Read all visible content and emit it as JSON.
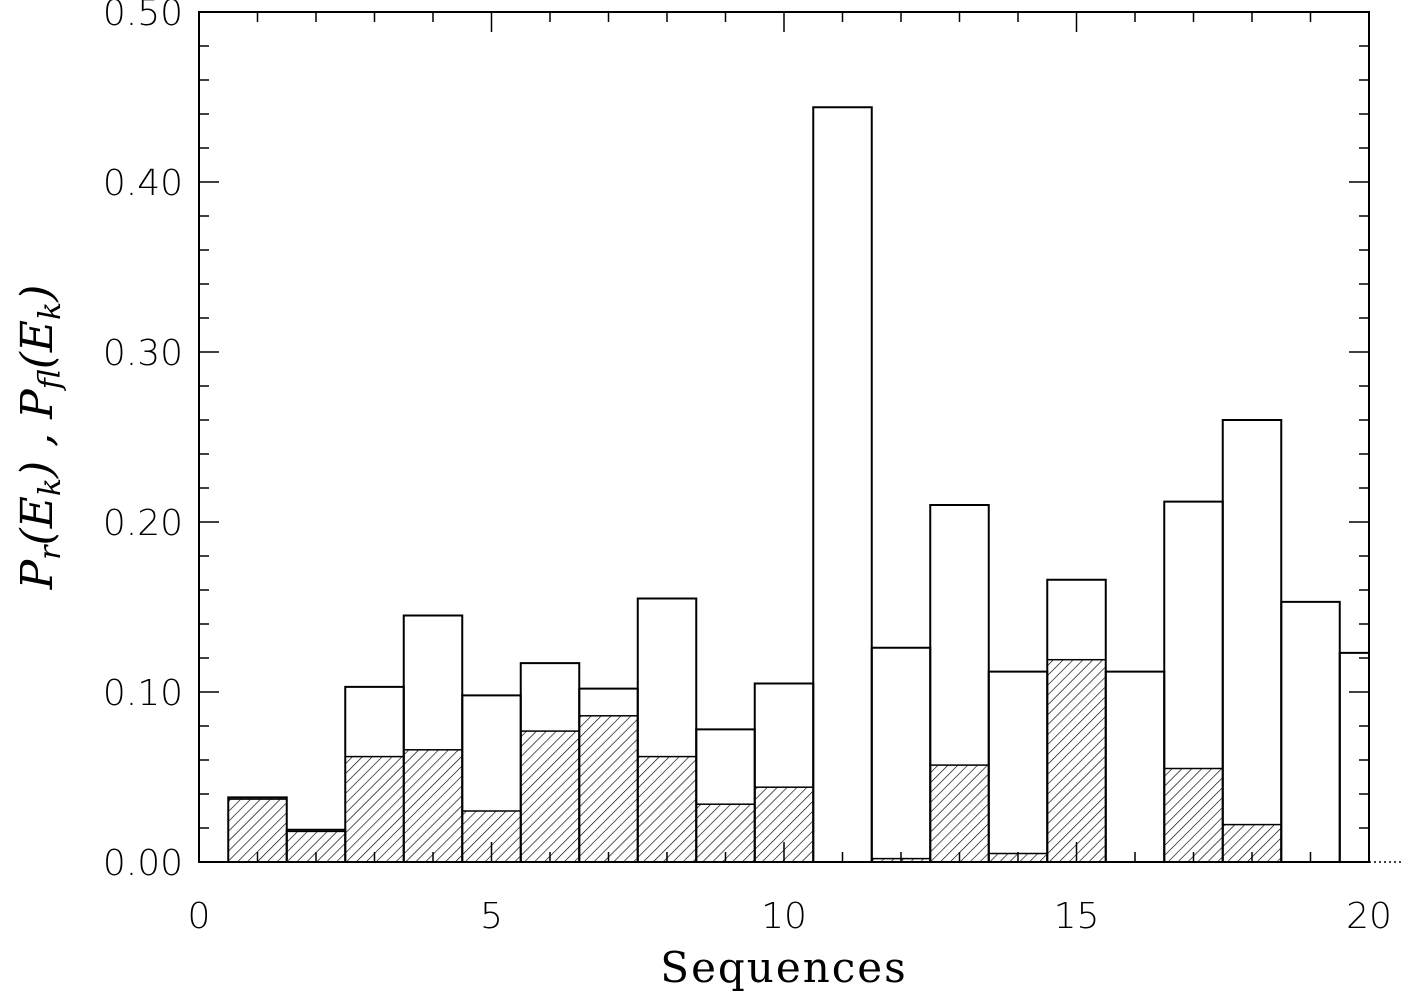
{
  "chart_data": {
    "type": "bar",
    "xlabel": "Sequences",
    "ylabel": "P_r(E_k) , P_fl(E_k)",
    "xlim": [
      0,
      20
    ],
    "ylim": [
      0,
      0.5
    ],
    "x_ticks": [
      "0",
      "5",
      "10",
      "15",
      "20"
    ],
    "y_ticks": [
      "0.00",
      "0.10",
      "0.20",
      "0.30",
      "0.40",
      "0.50"
    ],
    "bin_width": 1,
    "x": [
      1,
      2,
      3,
      4,
      5,
      6,
      7,
      8,
      9,
      10,
      11,
      12,
      13,
      14,
      15,
      16,
      17,
      18,
      19,
      20
    ],
    "series": [
      {
        "style": "outline",
        "values": [
          0.038,
          0.019,
          0.103,
          0.145,
          0.098,
          0.117,
          0.102,
          0.155,
          0.078,
          0.105,
          0.444,
          0.126,
          0.21,
          0.112,
          0.166,
          0.112,
          0.212,
          0.26,
          0.153,
          0.123
        ]
      },
      {
        "style": "hatched",
        "values": [
          0.037,
          0.018,
          0.062,
          0.066,
          0.03,
          0.077,
          0.086,
          0.062,
          0.034,
          0.044,
          0.0,
          0.002,
          0.057,
          0.005,
          0.119,
          0.0,
          0.055,
          0.022,
          0.0,
          0.0
        ]
      }
    ]
  }
}
